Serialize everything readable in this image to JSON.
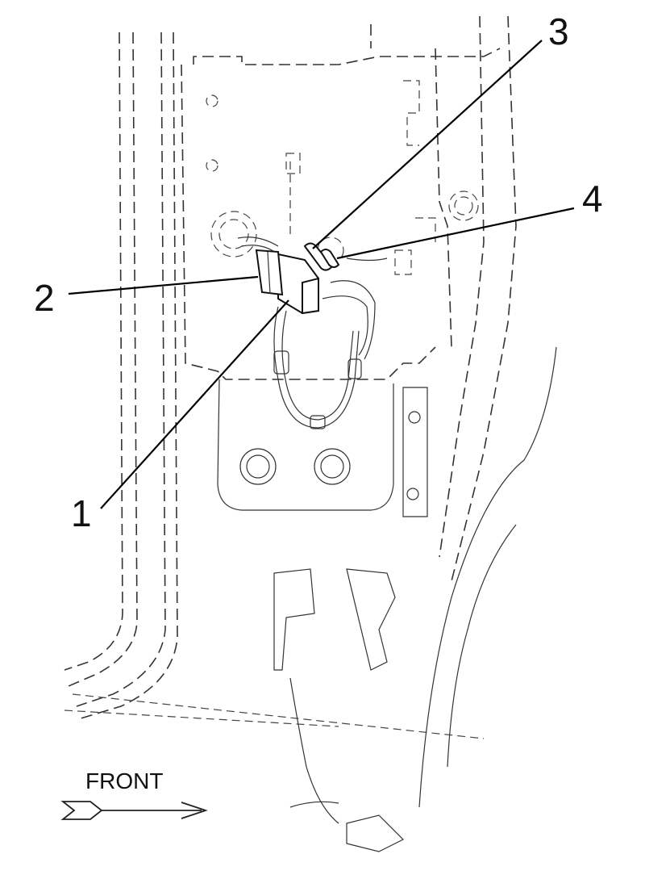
{
  "callouts": [
    {
      "id": "1",
      "label": "1"
    },
    {
      "id": "2",
      "label": "2"
    },
    {
      "id": "3",
      "label": "3"
    },
    {
      "id": "4",
      "label": "4"
    }
  ],
  "direction_indicator": {
    "label": "FRONT",
    "arrow_icon": "right-arrow-icon"
  },
  "colors": {
    "line": "#222222",
    "background": "#ffffff"
  }
}
